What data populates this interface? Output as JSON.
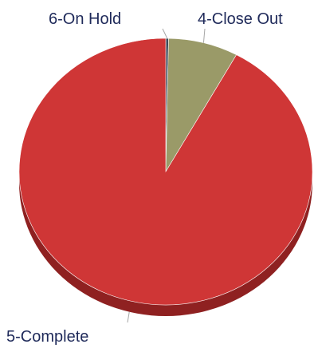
{
  "chart_data": {
    "type": "pie",
    "title": "",
    "categories": [
      "6-On Hold",
      "4-Close Out",
      "5-Complete"
    ],
    "values": [
      0.3,
      7.7,
      92.0
    ],
    "colors": [
      "#3b4a5a",
      "#9a9a68",
      "#cf3636"
    ],
    "side_colors": [
      "#2a3440",
      "#6f6f48",
      "#8f2121"
    ],
    "style": "3d-tilted",
    "legend": "none",
    "data_labels": "category-name-outside"
  }
}
